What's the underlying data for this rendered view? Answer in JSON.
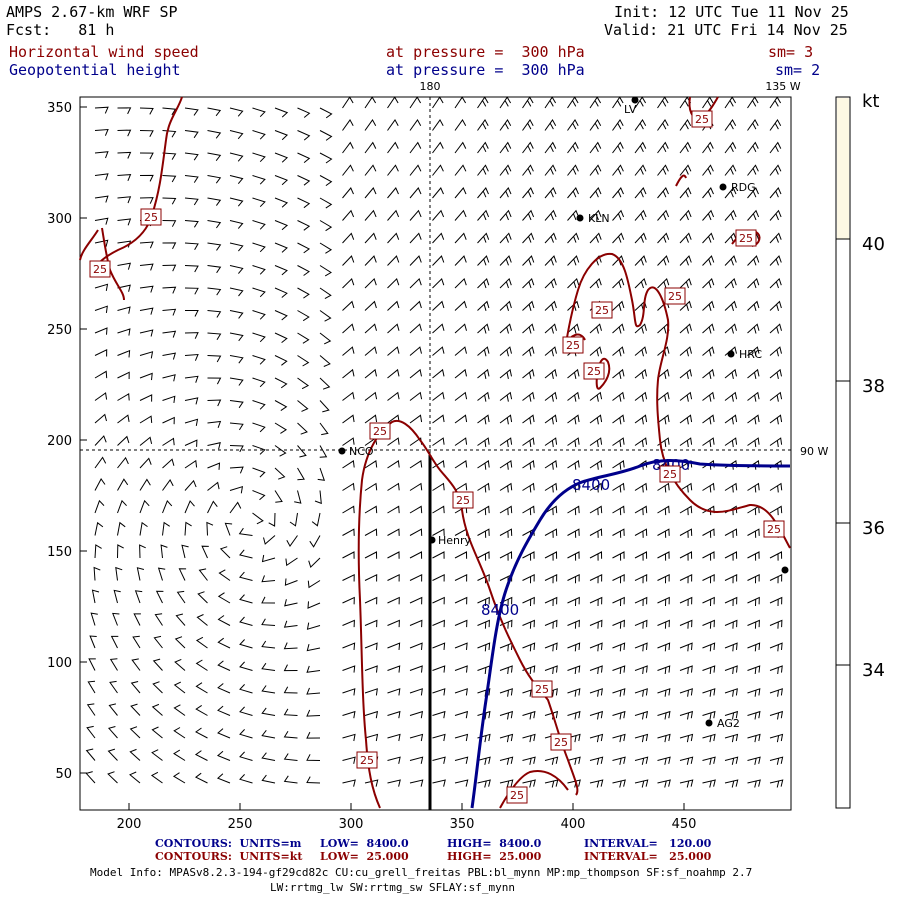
{
  "header": {
    "model": "AMPS 2.67-km WRF SP",
    "forecast": "Fcst:   81 h",
    "init": "Init: 12 UTC Tue 11 Nov 25",
    "valid": "Valid: 21 UTC Fri 14 Nov 25",
    "field1": "Horizontal wind speed",
    "field1_level": "at pressure =  300 hPa",
    "field1_sm": "sm= 3",
    "field2": "Geopotential height",
    "field2_level": "at pressure =  300 hPa",
    "field2_sm": "sm= 2"
  },
  "axes": {
    "x_ticks": [
      "200",
      "250",
      "300",
      "350",
      "400",
      "450"
    ],
    "y_ticks": [
      "350",
      "300",
      "250",
      "200",
      "150",
      "100",
      "50"
    ],
    "lon_labels": [
      "180",
      "135 W",
      "90 W"
    ]
  },
  "stations": [
    "KLN",
    "RDG",
    "HRC",
    "NCO",
    "Henry",
    "AG2",
    "LV",
    ""
  ],
  "contour_labels": {
    "height_value": "8400",
    "wind_value": "25"
  },
  "colorbar": {
    "unit": "kt",
    "ticks": [
      "40",
      "38",
      "36",
      "34"
    ],
    "color": "#fdf8e4"
  },
  "footer": {
    "c1_label": "CONTOURS:  UNITS=m",
    "c1_low": "LOW=  8400.0",
    "c1_high": "HIGH=  8400.0",
    "c1_int": "INTERVAL=   120.00",
    "c2_label": "CONTOURS:  UNITS=kt",
    "c2_low": "LOW=  25.000",
    "c2_high": "HIGH=  25.000",
    "c2_int": "INTERVAL=   25.000",
    "model_info": "Model Info: MPASv8.2.3-194-gf29cd82c CU:cu_grell_freitas PBL:bl_mynn MP:mp_thompson SF:sf_noahmp 2.7",
    "model_info2": "LW:rrtmg_lw SW:rrtmg_sw SFLAY:sf_mynn"
  },
  "colors": {
    "height_contour": "#00008b",
    "wind_contour": "#8b0000"
  }
}
